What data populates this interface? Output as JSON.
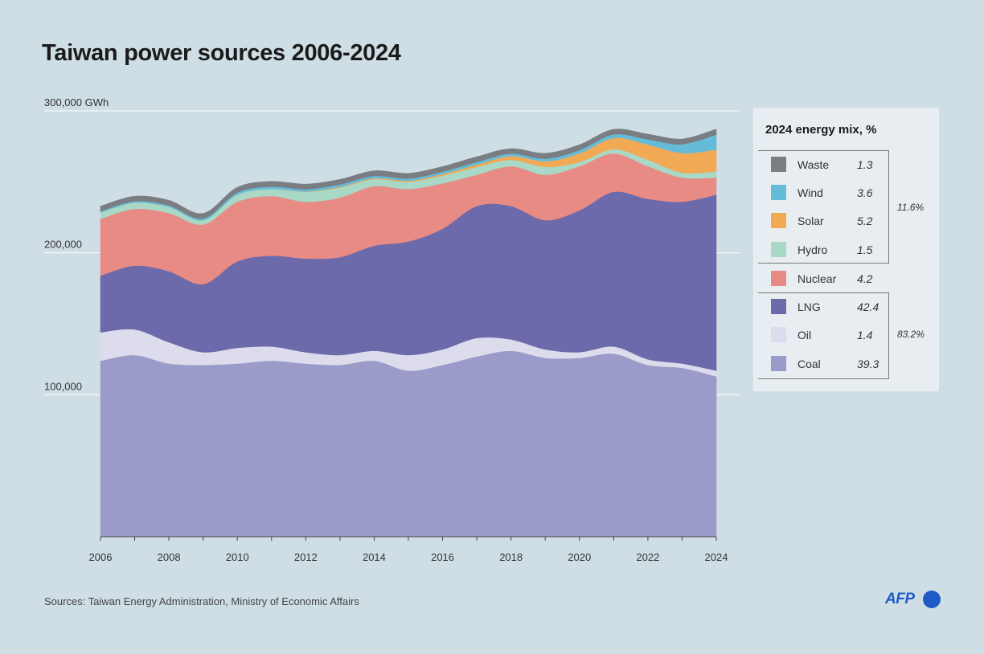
{
  "title": "Taiwan power sources 2006-2024",
  "source": "Sources: Taiwan Energy Administration, Ministry of Economic Affairs",
  "logo": "AFP",
  "legend": {
    "title": "2024 energy mix, %",
    "items": [
      {
        "name": "Waste",
        "value": "1.3",
        "color": "#7a7d81"
      },
      {
        "name": "Wind",
        "value": "3.6",
        "color": "#64bcd9"
      },
      {
        "name": "Solar",
        "value": "5.2",
        "color": "#f2a954"
      },
      {
        "name": "Hydro",
        "value": "1.5",
        "color": "#a9d8c7"
      },
      {
        "name": "Nuclear",
        "value": "4.2",
        "color": "#e88b84"
      },
      {
        "name": "LNG",
        "value": "42.4",
        "color": "#6d6aab"
      },
      {
        "name": "Oil",
        "value": "1.4",
        "color": "#dcdcec"
      },
      {
        "name": "Coal",
        "value": "39.3",
        "color": "#9b9bc9"
      }
    ],
    "renewables_pct": "11.6%",
    "fossil_pct": "83.2%"
  },
  "chart_data": {
    "type": "area",
    "stacked": true,
    "title": "Taiwan power sources 2006-2024",
    "x": [
      2006,
      2007,
      2008,
      2009,
      2010,
      2011,
      2012,
      2013,
      2014,
      2015,
      2016,
      2017,
      2018,
      2019,
      2020,
      2021,
      2022,
      2023,
      2024
    ],
    "xticks": [
      "2006",
      "2008",
      "2010",
      "2012",
      "2014",
      "2016",
      "2018",
      "2020",
      "2022",
      "2024"
    ],
    "yticks": [
      {
        "value": 100000,
        "label": "100,000"
      },
      {
        "value": 200000,
        "label": "200,000"
      },
      {
        "value": 300000,
        "label": "300,000 GWh"
      }
    ],
    "ylim": [
      0,
      300000
    ],
    "ylabel": "GWh",
    "series": [
      {
        "name": "Coal",
        "color": "#9b9bc9",
        "values": [
          124000,
          128000,
          122000,
          121000,
          122000,
          124000,
          122000,
          121000,
          124000,
          117000,
          121000,
          127000,
          131000,
          126000,
          126000,
          129000,
          121000,
          119000,
          113000
        ]
      },
      {
        "name": "Oil",
        "color": "#dcdcec",
        "values": [
          20000,
          18000,
          15000,
          9000,
          11000,
          10000,
          8000,
          7000,
          7000,
          11000,
          11000,
          13000,
          8000,
          6000,
          4000,
          5000,
          4000,
          3000,
          4000
        ]
      },
      {
        "name": "LNG",
        "color": "#6d6aab",
        "values": [
          40000,
          45000,
          50000,
          48000,
          61000,
          64000,
          66000,
          69000,
          74000,
          80000,
          85000,
          93000,
          94000,
          91000,
          100000,
          109000,
          113000,
          114000,
          124000
        ]
      },
      {
        "name": "Nuclear",
        "color": "#e88b84",
        "values": [
          40000,
          40000,
          41000,
          42000,
          42000,
          42000,
          40000,
          42000,
          42000,
          37000,
          32000,
          22000,
          28000,
          32000,
          31000,
          27000,
          23000,
          17000,
          12000
        ]
      },
      {
        "name": "Hydro",
        "color": "#a9d8c7",
        "values": [
          4500,
          4400,
          4400,
          3000,
          5000,
          5000,
          7000,
          7000,
          5000,
          5000,
          5500,
          5500,
          4500,
          5500,
          3000,
          3000,
          4500,
          3500,
          4500
        ]
      },
      {
        "name": "Solar",
        "color": "#f2a954",
        "values": [
          0,
          0,
          0,
          0,
          0,
          0,
          200,
          500,
          600,
          800,
          1100,
          1700,
          2700,
          4000,
          6100,
          7900,
          10800,
          13800,
          15200
        ]
      },
      {
        "name": "Wind",
        "color": "#64bcd9",
        "values": [
          800,
          1000,
          1000,
          1200,
          1500,
          1600,
          1600,
          1700,
          1600,
          1600,
          1600,
          1800,
          1700,
          1900,
          2300,
          2500,
          3600,
          6200,
          10600
        ]
      },
      {
        "name": "Waste",
        "color": "#7a7d81",
        "values": [
          3500,
          3500,
          3600,
          3600,
          3600,
          3700,
          3600,
          3500,
          3600,
          3600,
          3600,
          3700,
          3500,
          3700,
          3700,
          3600,
          3700,
          3700,
          3800
        ]
      }
    ]
  }
}
